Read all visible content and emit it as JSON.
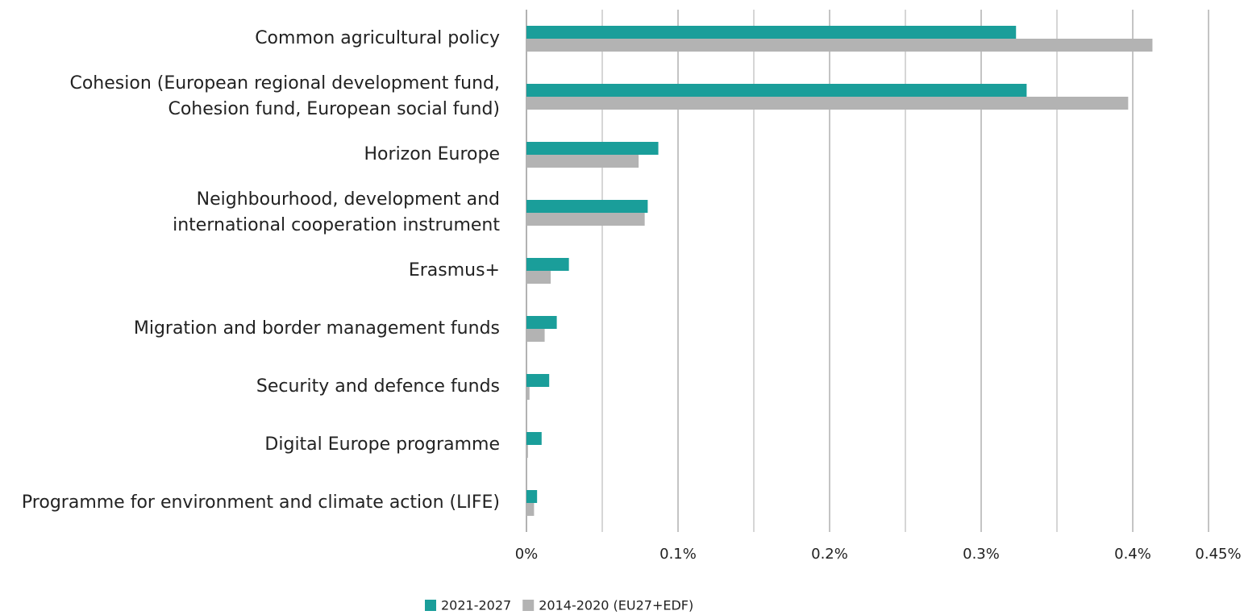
{
  "chart_data": {
    "type": "barh",
    "categories": [
      "Common agricultural policy",
      "Cohesion (European regional development fund,\nCohesion fund, European social fund)",
      "Horizon Europe",
      "Neighbourhood, development and\ninternational cooperation instrument",
      "Erasmus+",
      "Migration and border management funds",
      "Security and defence funds",
      "Digital Europe programme",
      "Programme for environment and climate action (LIFE)"
    ],
    "series": [
      {
        "name": "2021-2027",
        "color": "#1a9e9a",
        "values": [
          0.323,
          0.33,
          0.087,
          0.08,
          0.028,
          0.02,
          0.015,
          0.01,
          0.007
        ]
      },
      {
        "name": "2014-2020 (EU27+EDF)",
        "color": "#b3b3b3",
        "values": [
          0.413,
          0.397,
          0.074,
          0.078,
          0.016,
          0.012,
          0.002,
          0.001,
          0.005
        ]
      }
    ],
    "xlim": [
      0,
      0.45
    ],
    "xticks": [
      {
        "value": 0,
        "label": "0%"
      },
      {
        "value": 0.1,
        "label": "0.1%"
      },
      {
        "value": 0.2,
        "label": "0.2%"
      },
      {
        "value": 0.3,
        "label": "0.3%"
      },
      {
        "value": 0.4,
        "label": "0.4%"
      },
      {
        "value": 0.45,
        "label": "0.45%"
      }
    ],
    "minor_xticks": [
      0.05,
      0.15,
      0.25,
      0.35
    ],
    "grid": true,
    "legend": "bottom"
  }
}
